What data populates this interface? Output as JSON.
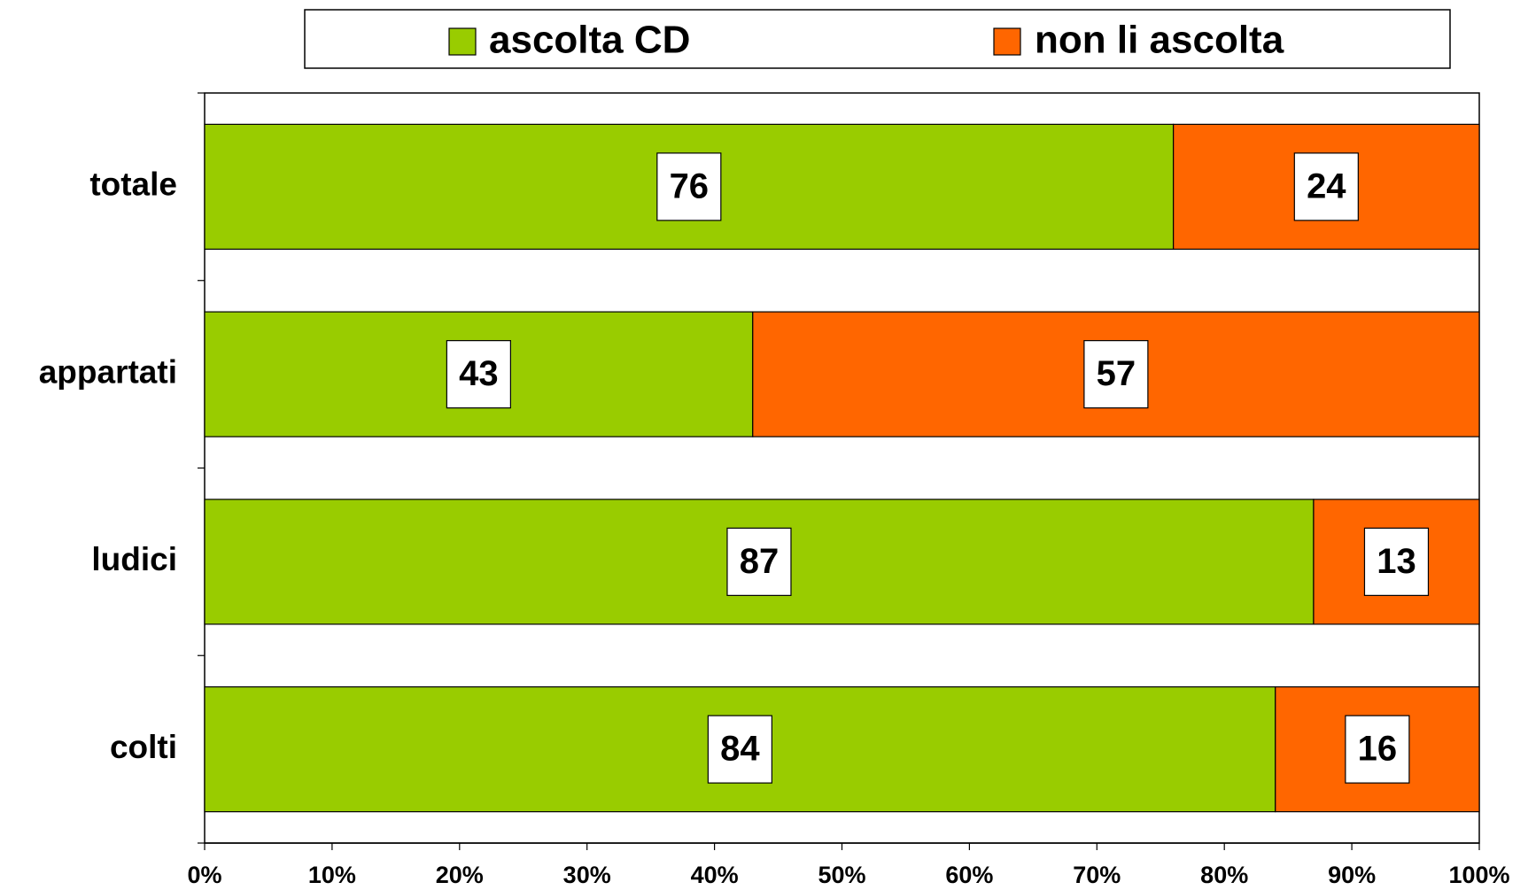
{
  "chart_data": {
    "type": "stacked-bar-horizontal",
    "categories": [
      "totale",
      "appartati",
      "ludici",
      "colti"
    ],
    "series": [
      {
        "name": "ascolta CD",
        "color": "#99cc00",
        "values": [
          76,
          43,
          87,
          84
        ]
      },
      {
        "name": "non li ascolta",
        "color": "#ff6600",
        "values": [
          24,
          57,
          13,
          16
        ]
      }
    ],
    "xlim": [
      0,
      100
    ],
    "xticks": [
      {
        "value": 0,
        "label": "0%"
      },
      {
        "value": 10,
        "label": "10%"
      },
      {
        "value": 20,
        "label": "20%"
      },
      {
        "value": 30,
        "label": "30%"
      },
      {
        "value": 40,
        "label": "40%"
      },
      {
        "value": 50,
        "label": "50%"
      },
      {
        "value": 60,
        "label": "60%"
      },
      {
        "value": 70,
        "label": "70%"
      },
      {
        "value": 80,
        "label": "80%"
      },
      {
        "value": 90,
        "label": "90%"
      },
      {
        "value": 100,
        "label": "100%"
      }
    ],
    "legend": "top"
  }
}
